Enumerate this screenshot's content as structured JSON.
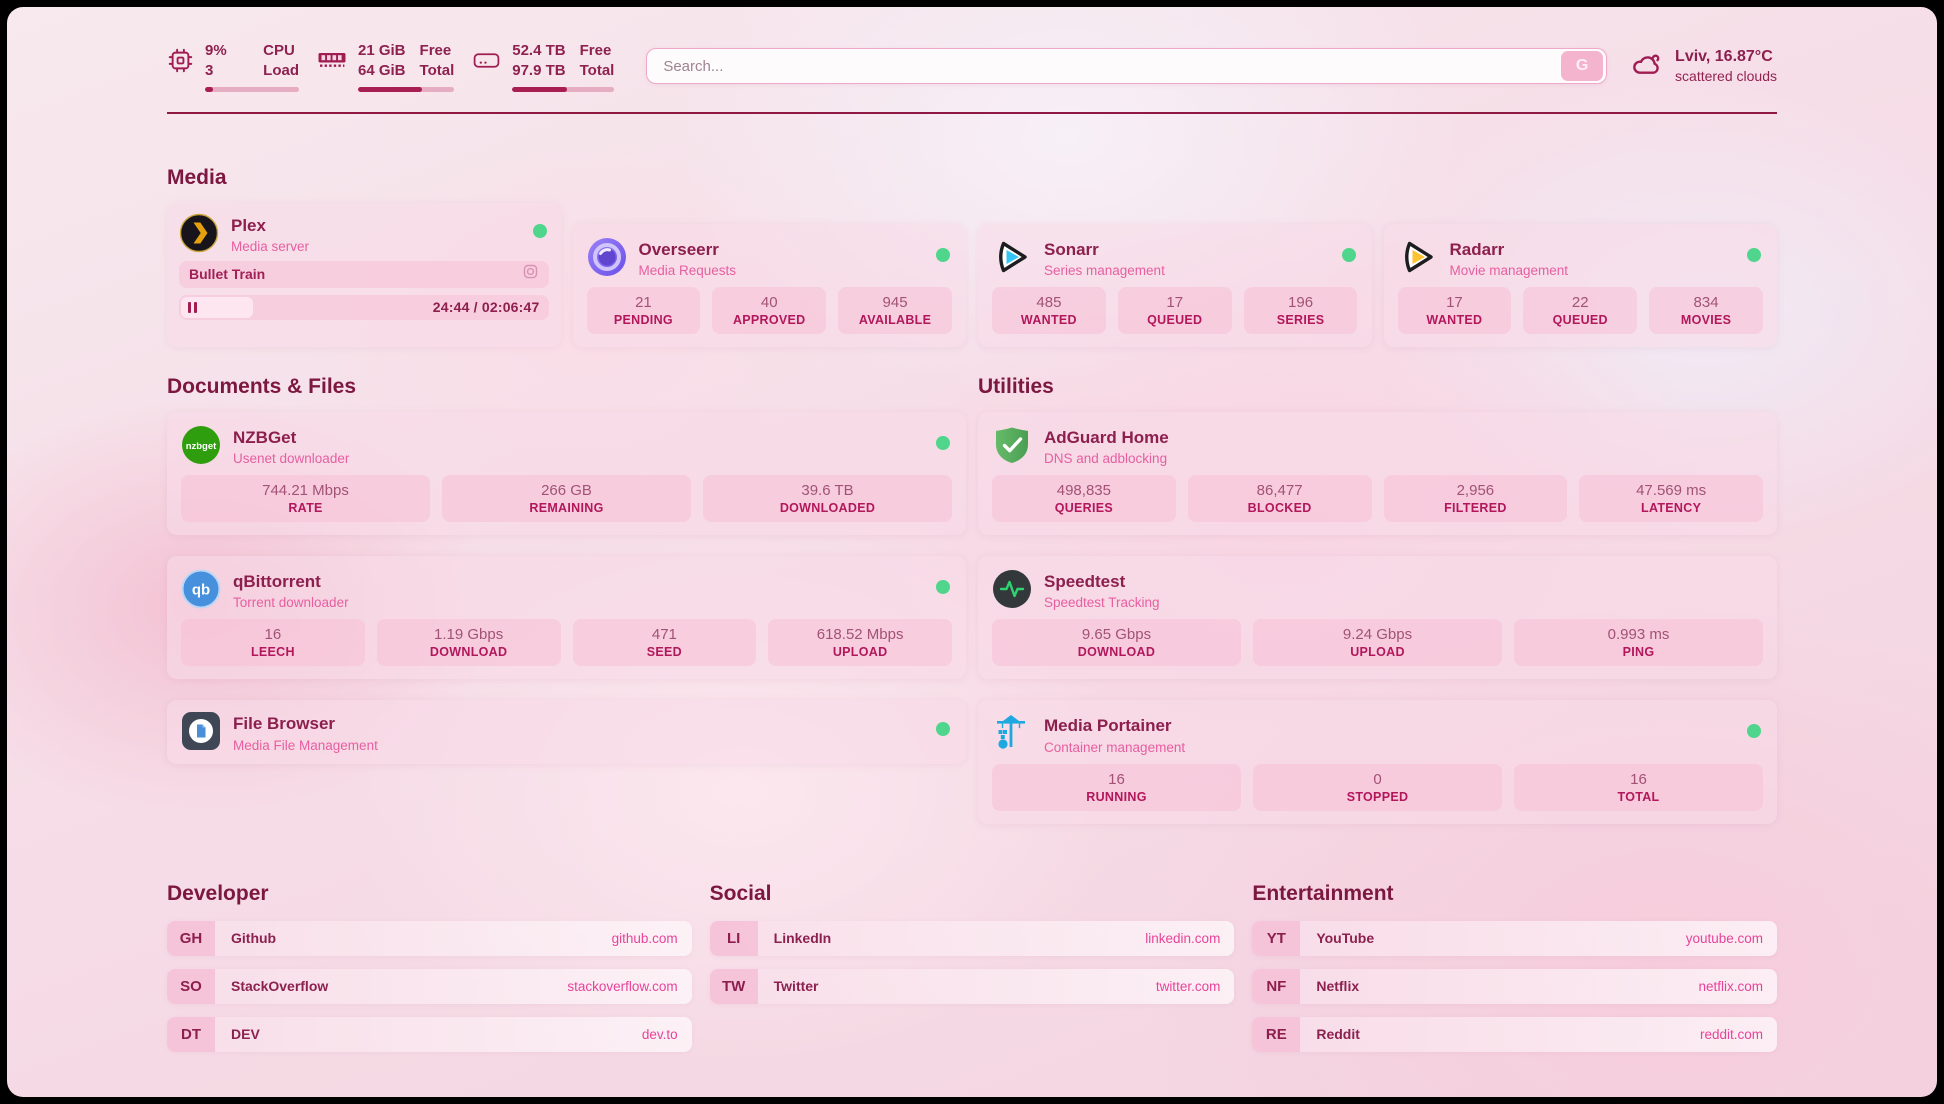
{
  "header": {
    "cpu": {
      "values": [
        "9%",
        "3"
      ],
      "labels": [
        "CPU",
        "Load"
      ],
      "progress": 9
    },
    "ram": {
      "values": [
        "21 GiB",
        "64 GiB"
      ],
      "labels": [
        "Free",
        "Total"
      ],
      "progress": 67
    },
    "disk": {
      "values": [
        "52.4 TB",
        "97.9 TB"
      ],
      "labels": [
        "Free",
        "Total"
      ],
      "progress": 54
    },
    "search": {
      "placeholder": "Search...",
      "button": "G"
    },
    "weather": {
      "location": "Lviv, 16.87°C",
      "condition": "scattered clouds"
    }
  },
  "media": {
    "title": "Media",
    "plex": {
      "name": "Plex",
      "subtitle": "Media server",
      "now_playing": "Bullet Train",
      "elapsed_total": "24:44 / 02:06:47",
      "progress": 19.5
    },
    "overseerr": {
      "name": "Overseerr",
      "subtitle": "Media Requests",
      "stats": [
        {
          "value": "21",
          "label": "PENDING"
        },
        {
          "value": "40",
          "label": "APPROVED"
        },
        {
          "value": "945",
          "label": "AVAILABLE"
        }
      ]
    },
    "sonarr": {
      "name": "Sonarr",
      "subtitle": "Series management",
      "stats": [
        {
          "value": "485",
          "label": "WANTED"
        },
        {
          "value": "17",
          "label": "QUEUED"
        },
        {
          "value": "196",
          "label": "SERIES"
        }
      ]
    },
    "radarr": {
      "name": "Radarr",
      "subtitle": "Movie management",
      "stats": [
        {
          "value": "17",
          "label": "WANTED"
        },
        {
          "value": "22",
          "label": "QUEUED"
        },
        {
          "value": "834",
          "label": "MOVIES"
        }
      ]
    }
  },
  "documents": {
    "title": "Documents & Files",
    "nzbget": {
      "name": "NZBGet",
      "subtitle": "Usenet downloader",
      "stats": [
        {
          "value": "744.21 Mbps",
          "label": "RATE"
        },
        {
          "value": "266 GB",
          "label": "REMAINING"
        },
        {
          "value": "39.6 TB",
          "label": "DOWNLOADED"
        }
      ]
    },
    "qbittorrent": {
      "name": "qBittorrent",
      "subtitle": "Torrent downloader",
      "stats": [
        {
          "value": "16",
          "label": "LEECH"
        },
        {
          "value": "1.19 Gbps",
          "label": "DOWNLOAD"
        },
        {
          "value": "471",
          "label": "SEED"
        },
        {
          "value": "618.52 Mbps",
          "label": "UPLOAD"
        }
      ]
    },
    "filebrowser": {
      "name": "File Browser",
      "subtitle": "Media File Management"
    }
  },
  "utilities": {
    "title": "Utilities",
    "adguard": {
      "name": "AdGuard Home",
      "subtitle": "DNS and adblocking",
      "stats": [
        {
          "value": "498,835",
          "label": "QUERIES"
        },
        {
          "value": "86,477",
          "label": "BLOCKED"
        },
        {
          "value": "2,956",
          "label": "FILTERED"
        },
        {
          "value": "47.569 ms",
          "label": "LATENCY"
        }
      ]
    },
    "speedtest": {
      "name": "Speedtest",
      "subtitle": "Speedtest Tracking",
      "stats": [
        {
          "value": "9.65 Gbps",
          "label": "DOWNLOAD"
        },
        {
          "value": "9.24 Gbps",
          "label": "UPLOAD"
        },
        {
          "value": "0.993 ms",
          "label": "PING"
        }
      ]
    },
    "portainer": {
      "name": "Media Portainer",
      "subtitle": "Container management",
      "stats": [
        {
          "value": "16",
          "label": "RUNNING"
        },
        {
          "value": "0",
          "label": "STOPPED"
        },
        {
          "value": "16",
          "label": "TOTAL"
        }
      ]
    }
  },
  "developer": {
    "title": "Developer",
    "links": [
      {
        "abbr": "GH",
        "name": "Github",
        "url": "github.com"
      },
      {
        "abbr": "SO",
        "name": "StackOverflow",
        "url": "stackoverflow.com"
      },
      {
        "abbr": "DT",
        "name": "DEV",
        "url": "dev.to"
      }
    ]
  },
  "social": {
    "title": "Social",
    "links": [
      {
        "abbr": "LI",
        "name": "LinkedIn",
        "url": "linkedin.com"
      },
      {
        "abbr": "TW",
        "name": "Twitter",
        "url": "twitter.com"
      }
    ]
  },
  "entertainment": {
    "title": "Entertainment",
    "links": [
      {
        "abbr": "YT",
        "name": "YouTube",
        "url": "youtube.com"
      },
      {
        "abbr": "NF",
        "name": "Netflix",
        "url": "netflix.com"
      },
      {
        "abbr": "RE",
        "name": "Reddit",
        "url": "reddit.com"
      }
    ]
  },
  "colors": {
    "accent": "#a01d52",
    "status_ok": "#4fd68c",
    "link_pink": "#e8439a"
  }
}
